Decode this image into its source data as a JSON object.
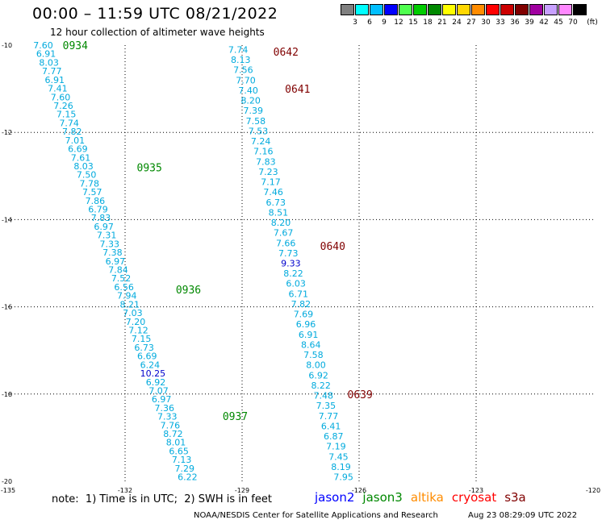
{
  "title": "00:00 – 11:59 UTC 08/21/2022",
  "subtitle": "12 hour collection of altimeter wave heights",
  "colorbar": {
    "colors": [
      "#808080",
      "#00ffff",
      "#00bfff",
      "#0000ff",
      "#4fff4f",
      "#00cc00",
      "#008800",
      "#ffff00",
      "#ffd700",
      "#ff8c00",
      "#ff0000",
      "#cc0000",
      "#800000",
      "#a000a0",
      "#c8a0ff",
      "#ff88ff",
      "#000000"
    ],
    "labels": [
      "3",
      "6",
      "9",
      "12",
      "15",
      "18",
      "21",
      "24",
      "27",
      "30",
      "33",
      "36",
      "39",
      "42",
      "45",
      "70"
    ],
    "unit": "(ft)"
  },
  "chart_data": {
    "type": "scatter",
    "xlim": [
      -135,
      -120
    ],
    "ylim": [
      -20,
      -10
    ],
    "x_ticks": [
      "-135",
      "-132",
      "-129",
      "-126",
      "-123",
      "-120"
    ],
    "y_ticks": [
      "-10",
      "-12",
      "-14",
      "-16",
      "-18",
      "-20"
    ],
    "grid": true,
    "tracks": [
      {
        "time_labels": [
          {
            "text": "0934",
            "x": -133.6,
            "y": -10.0,
            "color": "#008800"
          },
          {
            "text": "0935",
            "x": -131.7,
            "y": -12.8,
            "color": "#008800"
          },
          {
            "text": "0936",
            "x": -130.7,
            "y": -15.6,
            "color": "#008800"
          },
          {
            "text": "0937",
            "x": -129.5,
            "y": -18.5,
            "color": "#008800"
          }
        ],
        "x_start": -134.1,
        "y_start": -10.0,
        "x_end": -130.4,
        "y_end": -19.9,
        "values": [
          "7.60",
          "6.91",
          "8.03",
          "7.77",
          "6.91",
          "7.41",
          "7.60",
          "7.26",
          "7.15",
          "7.74",
          "7.82",
          "7.01",
          "6.69",
          "7.61",
          "8.03",
          "7.50",
          "7.78",
          "7.57",
          "7.86",
          "6.79",
          "7.83",
          "6.97",
          "7.31",
          "7.33",
          "7.38",
          "6.97",
          "7.84",
          "7.52",
          "6.56",
          "7.94",
          "8.21",
          "7.03",
          "7.20",
          "7.12",
          "7.15",
          "6.73",
          "6.69",
          "6.24",
          "10.25",
          "6.92",
          "7.07",
          "6.97",
          "7.36",
          "7.33",
          "7.76",
          "8.72",
          "8.01",
          "6.65",
          "7.13",
          "7.29",
          "6.22"
        ],
        "colors": {
          "10.25": "#0000cc"
        }
      },
      {
        "time_labels": [
          {
            "text": "0642",
            "x": -128.2,
            "y": -10.15,
            "color": "#800000"
          },
          {
            "text": "0641",
            "x": -127.9,
            "y": -11.0,
            "color": "#800000"
          },
          {
            "text": "0640",
            "x": -127.0,
            "y": -14.6,
            "color": "#800000"
          },
          {
            "text": "0639",
            "x": -126.3,
            "y": -18.0,
            "color": "#800000"
          }
        ],
        "x_start": -129.1,
        "y_start": -10.1,
        "x_end": -126.4,
        "y_end": -19.9,
        "values": [
          "7.74",
          "8.13",
          "7.56",
          "7.70",
          "7.40",
          "8.20",
          "7.39",
          "7.58",
          "7.53",
          "7.24",
          "7.16",
          "7.83",
          "7.23",
          "7.17",
          "7.46",
          "6.73",
          "8.51",
          "8.20",
          "7.67",
          "7.66",
          "7.73",
          "9.33",
          "8.22",
          "6.03",
          "6.71",
          "7.82",
          "7.69",
          "6.96",
          "6.91",
          "8.64",
          "7.58",
          "8.00",
          "6.92",
          "8.22",
          "7.48",
          "7.35",
          "7.77",
          "6.41",
          "6.87",
          "7.19",
          "7.45",
          "8.19",
          "7.95"
        ],
        "colors": {
          "9.33": "#0000cc"
        }
      }
    ]
  },
  "note": "note:  1) Time is in UTC;  2) SWH is in feet",
  "satellites": [
    {
      "name": "jason2",
      "color": "#0000ff"
    },
    {
      "name": "jason3",
      "color": "#008800"
    },
    {
      "name": "altika",
      "color": "#ff8c00"
    },
    {
      "name": "cryosat",
      "color": "#ff0000"
    },
    {
      "name": "s3a",
      "color": "#800000"
    }
  ],
  "credit": "NOAA/NESDIS Center for Satellite Applications and Research",
  "timestamp": "Aug 23 08:29:09 UTC 2022"
}
